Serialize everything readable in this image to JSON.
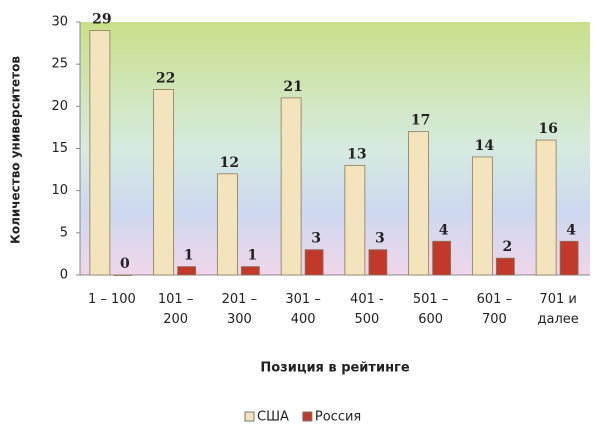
{
  "chart_data": {
    "type": "bar",
    "x_label": "Позиция в рейтинге",
    "y_label": "Количество университетов",
    "categories": [
      "1 – 100",
      "101 – 200",
      "201 – 300",
      "301 – 400",
      "401 - 500",
      "501 – 600",
      "601 – 700",
      "701 и далее"
    ],
    "series": [
      {
        "name": "США",
        "color": "#f3e4bd",
        "values": [
          29,
          22,
          12,
          21,
          13,
          17,
          14,
          16
        ]
      },
      {
        "name": "Россия",
        "color": "#c0392b",
        "values": [
          0,
          1,
          1,
          3,
          3,
          4,
          2,
          4
        ]
      }
    ],
    "ylim": [
      0,
      30
    ],
    "yticks": [
      0,
      5,
      10,
      15,
      20,
      25,
      30
    ],
    "grid": false,
    "legend": "bottom"
  }
}
